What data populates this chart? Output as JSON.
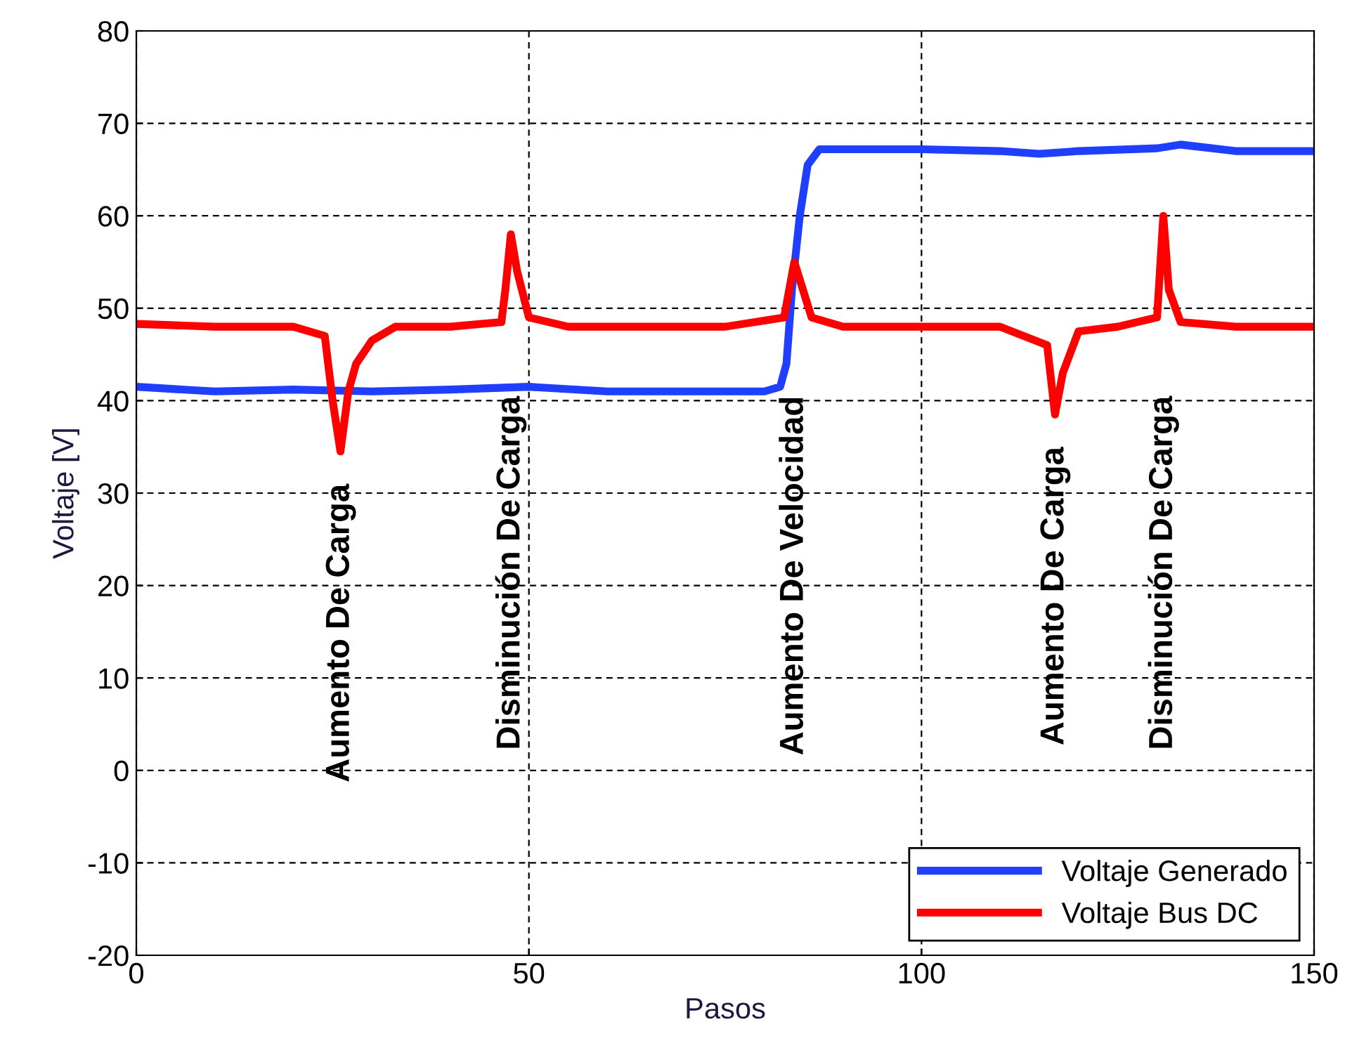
{
  "chart_data": {
    "type": "line",
    "xlabel": "Pasos",
    "ylabel": "Voltaje [V]",
    "xlim": [
      0,
      150
    ],
    "xticks": [
      0,
      50,
      100,
      150
    ],
    "ylim": [
      -20,
      80
    ],
    "yticks": [
      -20,
      -10,
      0,
      10,
      20,
      30,
      40,
      50,
      60,
      70,
      80
    ],
    "grid": true,
    "legend": "bottom right",
    "line_style": "solid",
    "marker": "none",
    "series": [
      {
        "name": "Voltaje Generado",
        "color": "#1f3fff",
        "x": [
          0,
          10,
          20,
          30,
          40,
          50,
          60,
          70,
          80,
          82,
          82.8,
          83.5,
          84.5,
          85.5,
          87,
          100,
          110,
          115,
          120,
          130,
          133,
          140,
          150
        ],
        "values": [
          41.5,
          41,
          41.2,
          41,
          41.2,
          41.5,
          41,
          41,
          41,
          41.5,
          44,
          52,
          60,
          65.5,
          67.2,
          67.2,
          67,
          66.7,
          67,
          67.3,
          67.7,
          67,
          67
        ]
      },
      {
        "name": "Voltaje Bus DC",
        "color": "#ff0000",
        "x": [
          0,
          10,
          20,
          24,
          25,
          26,
          27,
          28,
          30,
          33,
          40,
          46.5,
          47,
          47.7,
          48.5,
          50,
          55,
          65,
          75,
          82.5,
          83.8,
          86,
          90,
          100,
          110,
          116,
          117,
          118,
          120,
          125,
          130,
          130.8,
          131.5,
          133,
          140,
          150
        ],
        "values": [
          48.3,
          48,
          48,
          47,
          40,
          34.5,
          41,
          44,
          46.5,
          48,
          48,
          48.5,
          52,
          58,
          54,
          49,
          48,
          48,
          48,
          49,
          55,
          49,
          48,
          48,
          48,
          46,
          38.5,
          43,
          47.5,
          48,
          49,
          60,
          52,
          48.5,
          48,
          48
        ]
      }
    ],
    "annotations": [
      "Aumento De Carga",
      "Disminución De Carga",
      "Aumento De Velocidad",
      "Aumento De Carga",
      "Disminución De Carga"
    ]
  }
}
